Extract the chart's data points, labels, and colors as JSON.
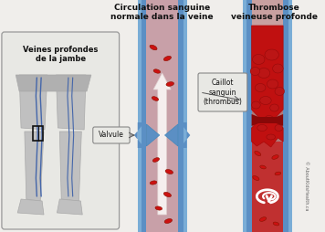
{
  "bg_color": "#f0eeeb",
  "title_normal": "Circulation sanguine\nnormale dans la veine",
  "title_dvt": "Thrombose\nveineuse profonde",
  "label_leg": "Veines profondes\nde la jambe",
  "label_valve": "Valvule",
  "label_clot": "Caillot\nsanguin\n(thrombus)",
  "credit": "© AboutKidsHealth.ca",
  "vein_wall_outer": "#5b8fc4",
  "vein_wall_inner": "#7aadd6",
  "vein_lumen_normal": "#c8a0a8",
  "vein_lumen_dvt": "#b07878",
  "blood_cell_color": "#cc1111",
  "blood_cell_edge": "#881100",
  "clot_base": "#c01010",
  "clot_lobule": "#aa0808",
  "clot_top": "#a87070",
  "arrow_fill": "#f5eeee",
  "arrow_edge": "#e0d0d0",
  "leg_fill": "#c0c0c0",
  "leg_edge": "#aaaaaa",
  "shorts_fill": "#b0b0b0",
  "vein_line": "#4466aa",
  "box_fill": "#e8e8e4",
  "box_edge": "#999999",
  "callout_fill": "#e8e8e4",
  "callout_edge": "#888888",
  "text_color": "#111111",
  "credit_color": "#666666"
}
